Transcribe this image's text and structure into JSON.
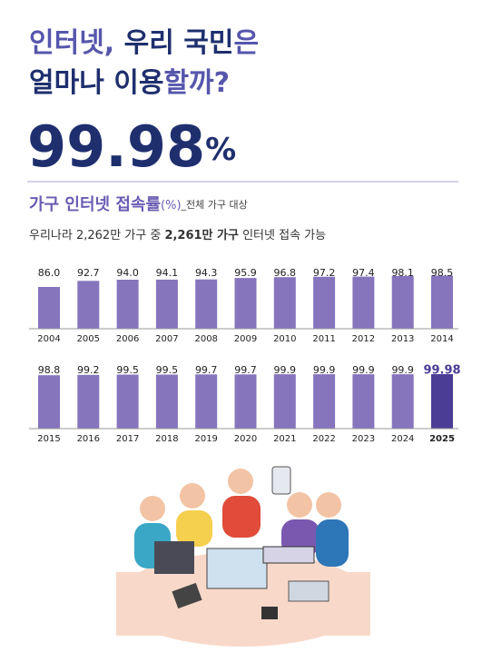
{
  "header": {
    "line1": [
      {
        "text": "인터넷,",
        "tone": "light"
      },
      {
        "text": " 우리 국민",
        "tone": "dark"
      },
      {
        "text": "은",
        "tone": "light"
      }
    ],
    "line2": [
      {
        "text": "얼마나 이용",
        "tone": "dark"
      },
      {
        "text": "할까?",
        "tone": "light"
      }
    ],
    "headline": "99.98",
    "headline_unit": "%"
  },
  "section": {
    "title": "가구 인터넷 접속률",
    "unit": "(%)",
    "scope": "_전체 가구 대상",
    "summary": [
      {
        "text": "우리나라 2,262만 가구 중 ",
        "bold": false
      },
      {
        "text": "2,261만 가구",
        "bold": true
      },
      {
        "text": " 인터넷 접속 가능",
        "bold": false
      }
    ]
  },
  "chart_data": {
    "type": "bar",
    "categories": [
      "2004",
      "2005",
      "2006",
      "2007",
      "2008",
      "2009",
      "2010",
      "2011",
      "2012",
      "2013",
      "2014",
      "2015",
      "2016",
      "2017",
      "2018",
      "2019",
      "2020",
      "2021",
      "2022",
      "2023",
      "2024",
      "2025"
    ],
    "values": [
      86.0,
      92.7,
      94.0,
      94.1,
      94.3,
      95.9,
      96.8,
      97.2,
      97.4,
      98.1,
      98.5,
      98.8,
      99.2,
      99.5,
      99.5,
      99.7,
      99.7,
      99.9,
      99.9,
      99.9,
      99.9,
      99.98
    ],
    "value_labels": [
      "86.0",
      "92.7",
      "94.0",
      "94.1",
      "94.3",
      "95.9",
      "96.8",
      "97.2",
      "97.4",
      "98.1",
      "98.5",
      "98.8",
      "99.2",
      "99.5",
      "99.5",
      "99.7",
      "99.7",
      "99.9",
      "99.9",
      "99.9",
      "99.9",
      "99.98"
    ],
    "colors": [
      "#8675bd",
      "#8675bd",
      "#8675bd",
      "#8675bd",
      "#8675bd",
      "#8675bd",
      "#8675bd",
      "#8675bd",
      "#8675bd",
      "#8675bd",
      "#8675bd",
      "#8675bd",
      "#8675bd",
      "#8675bd",
      "#8675bd",
      "#8675bd",
      "#8675bd",
      "#8675bd",
      "#8675bd",
      "#8675bd",
      "#8675bd",
      "#4b3d96"
    ],
    "ylim": [
      40,
      100
    ]
  }
}
